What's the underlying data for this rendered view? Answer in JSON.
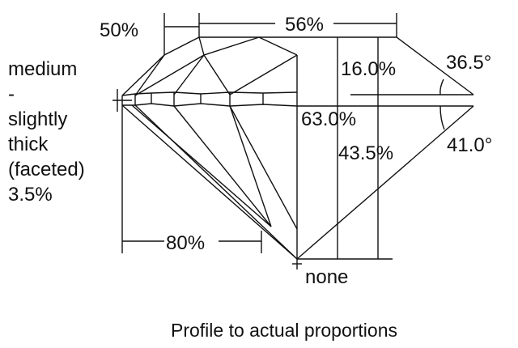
{
  "labels": {
    "crown_height_width": "50%",
    "table": "56%",
    "crown_height": "16.0%",
    "crown_angle": "36.5°",
    "total_depth": "63.0%",
    "pavilion_depth": "43.5%",
    "pavilion_angle": "41.0°",
    "lower_half": "80%",
    "culet": "none",
    "girdle": [
      "medium",
      "-",
      "slightly",
      "thick",
      "(faceted)",
      "3.5%"
    ]
  },
  "caption": "Profile to actual proportions",
  "colors": {
    "line": "#111111",
    "background": "#ffffff"
  }
}
